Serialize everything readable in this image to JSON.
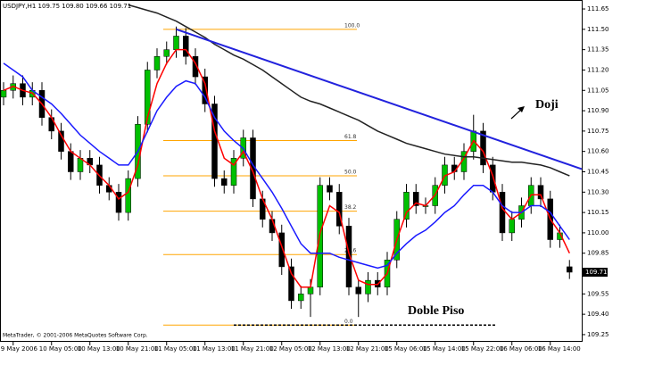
{
  "chart_data": {
    "type": "candlestick",
    "title": "USDJPY,H1 109.75 109.80 109.66 109.71",
    "footer": "MetaTrader, © 2001-2006 MetaQuotes Software Corp.",
    "categories": [
      null,
      "9 May 2006",
      null,
      null,
      null,
      "10 May 05:00",
      null,
      null,
      null,
      "10 May 13:00",
      null,
      null,
      null,
      "10 May 21:00",
      null,
      null,
      null,
      "11 May 05:00",
      null,
      null,
      null,
      "11 May 13:00",
      null,
      null,
      null,
      "11 May 21:00",
      null,
      null,
      null,
      "12 May 05:00",
      null,
      null,
      null,
      "12 May 13:00",
      null,
      null,
      null,
      "12 May 21:00",
      null,
      null,
      null,
      "15 May 06:00",
      null,
      null,
      null,
      "15 May 14:00",
      null,
      null,
      null,
      "15 May 22:00",
      null,
      null,
      null,
      "16 May 06:00",
      null,
      null,
      null,
      "16 May 14:00",
      null,
      null
    ],
    "open": [
      111.0,
      111.05,
      111.1,
      111.0,
      111.05,
      110.85,
      110.75,
      110.6,
      110.45,
      110.55,
      110.5,
      110.35,
      110.3,
      110.15,
      110.4,
      110.8,
      111.2,
      111.3,
      111.35,
      111.45,
      111.3,
      111.15,
      110.95,
      110.4,
      110.35,
      110.55,
      110.7,
      110.25,
      110.1,
      110.0,
      109.75,
      109.5,
      109.55,
      109.6,
      110.35,
      110.3,
      110.05,
      109.6,
      109.55,
      109.65,
      109.6,
      109.8,
      110.1,
      110.3,
      110.2,
      110.2,
      110.35,
      110.5,
      110.45,
      110.6,
      110.75,
      110.5,
      110.3,
      110.0,
      110.1,
      110.2,
      110.35,
      110.25,
      109.95,
      109.75
    ],
    "high": [
      111.11,
      111.16,
      111.16,
      111.11,
      111.11,
      110.91,
      110.81,
      110.66,
      110.61,
      110.61,
      110.56,
      110.41,
      110.36,
      110.46,
      110.86,
      111.26,
      111.36,
      111.41,
      111.52,
      111.51,
      111.36,
      111.21,
      111.01,
      110.46,
      110.61,
      110.76,
      110.76,
      110.31,
      110.16,
      110.06,
      109.81,
      109.61,
      109.66,
      110.41,
      110.41,
      110.36,
      110.11,
      109.66,
      109.71,
      109.71,
      109.86,
      110.16,
      110.36,
      110.36,
      110.26,
      110.41,
      110.56,
      110.56,
      110.66,
      110.87,
      110.81,
      110.56,
      110.36,
      110.16,
      110.26,
      110.41,
      110.41,
      110.31,
      110.06,
      109.8
    ],
    "low": [
      110.94,
      110.99,
      110.94,
      110.94,
      110.79,
      110.69,
      110.54,
      110.39,
      110.39,
      110.44,
      110.29,
      110.24,
      110.09,
      110.09,
      110.34,
      110.74,
      111.14,
      111.24,
      111.29,
      111.24,
      111.09,
      110.89,
      110.34,
      110.29,
      110.29,
      110.49,
      110.19,
      110.04,
      109.94,
      109.69,
      109.44,
      109.44,
      109.38,
      109.54,
      110.24,
      109.99,
      109.54,
      109.38,
      109.49,
      109.54,
      109.54,
      109.74,
      110.04,
      110.14,
      110.14,
      110.14,
      110.29,
      110.39,
      110.39,
      110.54,
      110.44,
      110.24,
      109.94,
      109.94,
      110.04,
      110.14,
      110.19,
      109.89,
      109.89,
      109.66
    ],
    "close": [
      111.05,
      111.1,
      111.0,
      111.05,
      110.85,
      110.75,
      110.6,
      110.45,
      110.55,
      110.5,
      110.35,
      110.3,
      110.15,
      110.4,
      110.8,
      111.2,
      111.3,
      111.35,
      111.45,
      111.3,
      111.15,
      110.95,
      110.4,
      110.35,
      110.55,
      110.7,
      110.25,
      110.1,
      110.0,
      109.75,
      109.5,
      109.55,
      109.6,
      110.35,
      110.3,
      110.05,
      109.6,
      109.55,
      109.65,
      109.6,
      109.8,
      110.1,
      110.3,
      110.2,
      110.2,
      110.35,
      110.5,
      110.45,
      110.6,
      110.75,
      110.5,
      110.3,
      110.0,
      110.1,
      110.2,
      110.35,
      110.25,
      109.95,
      110.0,
      109.71
    ],
    "up_color": "#00c000",
    "down_color": "#000000",
    "series": [
      {
        "color": "#ff0000",
        "values": [
          111.05,
          111.08,
          111.05,
          111.03,
          110.95,
          110.85,
          110.72,
          110.6,
          110.55,
          110.5,
          110.42,
          110.35,
          110.25,
          110.3,
          110.5,
          110.85,
          111.1,
          111.25,
          111.35,
          111.35,
          111.25,
          111.1,
          110.75,
          110.55,
          110.5,
          110.6,
          110.45,
          110.25,
          110.1,
          109.9,
          109.7,
          109.6,
          109.6,
          110.0,
          110.2,
          110.15,
          109.85,
          109.65,
          109.62,
          109.62,
          109.7,
          109.95,
          110.15,
          110.22,
          110.2,
          110.28,
          110.42,
          110.45,
          110.55,
          110.68,
          110.6,
          110.42,
          110.18,
          110.1,
          110.15,
          110.28,
          110.28,
          110.1,
          110.0,
          109.85
        ]
      },
      {
        "color": "#1a1aff",
        "values": [
          111.25,
          111.2,
          111.15,
          111.05,
          111.0,
          110.95,
          110.88,
          110.8,
          110.72,
          110.66,
          110.6,
          110.55,
          110.5,
          110.5,
          110.6,
          110.75,
          110.9,
          111.0,
          111.08,
          111.12,
          111.1,
          111.0,
          110.85,
          110.75,
          110.68,
          110.62,
          110.5,
          110.4,
          110.3,
          110.18,
          110.05,
          109.92,
          109.85,
          109.85,
          109.85,
          109.82,
          109.8,
          109.78,
          109.76,
          109.74,
          109.76,
          109.85,
          109.92,
          109.98,
          110.02,
          110.08,
          110.15,
          110.2,
          110.28,
          110.35,
          110.35,
          110.3,
          110.2,
          110.15,
          110.15,
          110.2,
          110.2,
          110.15,
          110.05,
          109.95
        ]
      },
      {
        "color": "#222222",
        "values": [
          null,
          null,
          null,
          null,
          null,
          null,
          null,
          null,
          null,
          null,
          null,
          null,
          null,
          111.68,
          111.66,
          111.64,
          111.62,
          111.59,
          111.56,
          111.52,
          111.48,
          111.44,
          111.39,
          111.35,
          111.31,
          111.28,
          111.24,
          111.2,
          111.15,
          111.1,
          111.05,
          111.0,
          110.97,
          110.95,
          110.92,
          110.89,
          110.86,
          110.83,
          110.79,
          110.75,
          110.72,
          110.69,
          110.66,
          110.64,
          110.62,
          110.6,
          110.58,
          110.57,
          110.56,
          110.56,
          110.55,
          110.54,
          110.53,
          110.52,
          110.52,
          110.51,
          110.5,
          110.48,
          110.45,
          110.42
        ]
      }
    ],
    "fib_color": "#ffa500",
    "fib_levels": [
      {
        "value": 111.5,
        "label": "100.0"
      },
      {
        "value": 110.68,
        "label": "61.8"
      },
      {
        "value": 110.42,
        "label": "50.0"
      },
      {
        "value": 110.16,
        "label": "38.2"
      },
      {
        "value": 109.84,
        "label": "23.6"
      },
      {
        "value": 109.32,
        "label": "0.0"
      }
    ],
    "trendline": {
      "color": "#2222dd",
      "x": [
        18,
        60.3
      ],
      "y": [
        111.5,
        110.47
      ]
    },
    "support": {
      "x": [
        24,
        51.3
      ],
      "y": [
        109.32,
        109.32
      ]
    },
    "annotations": [
      "Doji",
      "Doble Piso"
    ],
    "ylim": [
      109.197,
      111.716
    ],
    "yticks": [
      111.65,
      {
        "value": 111.5,
        "label": "111.50"
      },
      111.35,
      {
        "value": 111.2,
        "label": "111.20"
      },
      111.05,
      {
        "value": 110.9,
        "label": "110.90"
      },
      110.75,
      {
        "value": 110.6,
        "label": "110.60"
      },
      110.45,
      {
        "value": 110.3,
        "label": "110.30"
      },
      110.15,
      {
        "value": 110,
        "label": "110.00"
      },
      109.85,
      109.55,
      {
        "value": 109.4,
        "label": "109.40"
      },
      109.25
    ]
  }
}
